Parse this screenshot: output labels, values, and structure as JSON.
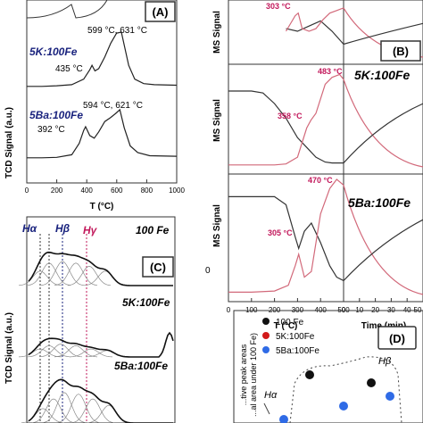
{
  "chart_data": [
    {
      "panel": "A",
      "type": "line",
      "xlabel": "T (°C)",
      "ylabel": "TCD Signal (a.u.)",
      "xticks": [
        "0",
        "200",
        "400",
        "600",
        "800",
        "1000"
      ],
      "xlim": [
        0,
        1000
      ],
      "series": [
        {
          "name": "5K:100Fe",
          "annotations": [
            "435 °C",
            "599 °C, 631 °C"
          ],
          "x": [
            0,
            100,
            200,
            300,
            380,
            420,
            435,
            455,
            480,
            520,
            560,
            599,
            631,
            680,
            720,
            780,
            850,
            1000
          ],
          "y": [
            0.02,
            0.02,
            0.03,
            0.05,
            0.15,
            0.32,
            0.4,
            0.3,
            0.34,
            0.55,
            0.8,
            0.98,
            1.0,
            0.4,
            0.15,
            0.07,
            0.05,
            0.04
          ]
        },
        {
          "name": "5Ba:100Fe",
          "annotations": [
            "392 °C",
            "594 °C, 621 °C"
          ],
          "x": [
            0,
            100,
            200,
            300,
            350,
            380,
            392,
            420,
            450,
            480,
            520,
            560,
            594,
            621,
            650,
            690,
            740,
            820,
            1000
          ],
          "y": [
            0.02,
            0.02,
            0.03,
            0.08,
            0.3,
            0.55,
            0.62,
            0.45,
            0.4,
            0.52,
            0.72,
            0.8,
            0.88,
            0.95,
            0.6,
            0.25,
            0.12,
            0.06,
            0.05
          ]
        }
      ]
    },
    {
      "panel": "B",
      "type": "line",
      "xlabel": "T (°C)",
      "xlabel2": "Time (min)",
      "ylabel": "MS Signal",
      "xticks": [
        "0",
        "100",
        "200",
        "300",
        "400",
        "500",
        "0",
        "10",
        "20",
        "30",
        "40",
        "50"
      ],
      "subpanels": [
        {
          "name": "",
          "annotations": [
            "303 °C"
          ],
          "red": {
            "x": [
              250,
              290,
              303,
              320,
              350,
              380,
              410,
              440,
              470,
              500
            ],
            "y": [
              0.5,
              0.8,
              0.85,
              0.55,
              0.5,
              0.55,
              0.72,
              0.85,
              0.9,
              0.95
            ]
          },
          "dark": {
            "x": [
              250,
              300,
              350,
              400,
              450,
              500
            ],
            "y": [
              0.55,
              0.5,
              0.6,
              0.7,
              0.5,
              0.25
            ]
          }
        },
        {
          "name": "5K:100Fe",
          "annotations": [
            "483 °C",
            "358 °C"
          ],
          "red": {
            "x": [
              0,
              100,
              200,
              250,
              300,
              340,
              358,
              380,
              420,
              450,
              483,
              500
            ],
            "y": [
              0.02,
              0.02,
              0.02,
              0.03,
              0.1,
              0.4,
              0.48,
              0.55,
              0.85,
              0.92,
              0.95,
              0.9
            ]
          },
          "dark": {
            "x": [
              0,
              100,
              150,
              200,
              250,
              300,
              340,
              380,
              420,
              450,
              500
            ],
            "y": [
              0.78,
              0.78,
              0.76,
              0.65,
              0.5,
              0.3,
              0.2,
              0.1,
              0.05,
              0.04,
              0.04
            ]
          }
        },
        {
          "name": "5Ba:100Fe",
          "annotations": [
            "470 °C",
            "305 °C",
            "0"
          ],
          "red": {
            "x": [
              0,
              100,
              200,
              260,
              290,
              305,
              330,
              360,
              400,
              440,
              470,
              500
            ],
            "y": [
              0.02,
              0.02,
              0.03,
              0.08,
              0.25,
              0.35,
              0.15,
              0.2,
              0.7,
              0.92,
              1.0,
              0.95
            ]
          },
          "dark": {
            "x": [
              0,
              100,
              200,
              250,
              290,
              305,
              330,
              360,
              400,
              440,
              470,
              500
            ],
            "y": [
              0.85,
              0.85,
              0.85,
              0.78,
              0.5,
              0.4,
              0.55,
              0.62,
              0.45,
              0.25,
              0.15,
              0.12
            ]
          }
        }
      ]
    },
    {
      "panel": "C",
      "type": "line",
      "ylabel": "TCD Signal (a.u.)",
      "peak_labels": [
        "Hα",
        "Hβ",
        "Hγ"
      ],
      "series": [
        {
          "name": "100 Fe"
        },
        {
          "name": "5K:100Fe"
        },
        {
          "name": "5Ba:100Fe"
        }
      ]
    },
    {
      "panel": "D",
      "type": "scatter",
      "ylabel": "...tive peak areas ...al area under 100 Fe)",
      "region_labels": [
        "Hα",
        "Hβ"
      ],
      "legend": [
        "100 Fe",
        "5K:100Fe",
        "5Ba:100Fe"
      ],
      "colors": {
        "100 Fe": "#111111",
        "5K:100Fe": "#d21a1a",
        "5Ba:100Fe": "#2f6be6"
      }
    }
  ],
  "labels": {
    "panel_a": "(A)",
    "panel_b": "(B)",
    "panel_c": "(C)",
    "panel_d": "(D)",
    "a_5k": "5K:100Fe",
    "a_5ba": "5Ba:100Fe",
    "a_435": "435 °C",
    "a_599": "599 °C, 631 °C",
    "a_392": "392 °C",
    "a_594": "594 °C, 621 °C",
    "a_ylabel": "TCD Signal (a.u.)",
    "a_xlabel": "T (°C)",
    "b_ylabel": "MS Signal",
    "b_303": "303 °C",
    "b_483": "483 °C",
    "b_358": "358 °C",
    "b_470": "470 °C",
    "b_305": "305 °C",
    "b_5k": "5K:100Fe",
    "b_5ba": "5Ba:100Fe",
    "b_zero": "0",
    "b_xlabel": "T (°C)",
    "b_xlabel2": "Time (min)",
    "c_ylabel": "TCD Signal (a.u.)",
    "c_ha": "Hα",
    "c_hb": "Hβ",
    "c_hy": "Hγ",
    "c_100fe": "100 Fe",
    "c_5k": "5K:100Fe",
    "c_5ba": "5Ba:100Fe",
    "d_ylabel1": "...tive peak areas",
    "d_ylabel2": "...al area under 100 Fe)",
    "d_leg1": "100 Fe",
    "d_leg2": "5K:100Fe",
    "d_leg3": "5Ba:100Fe",
    "d_hb": "Hβ",
    "d_ha": "Hα"
  }
}
